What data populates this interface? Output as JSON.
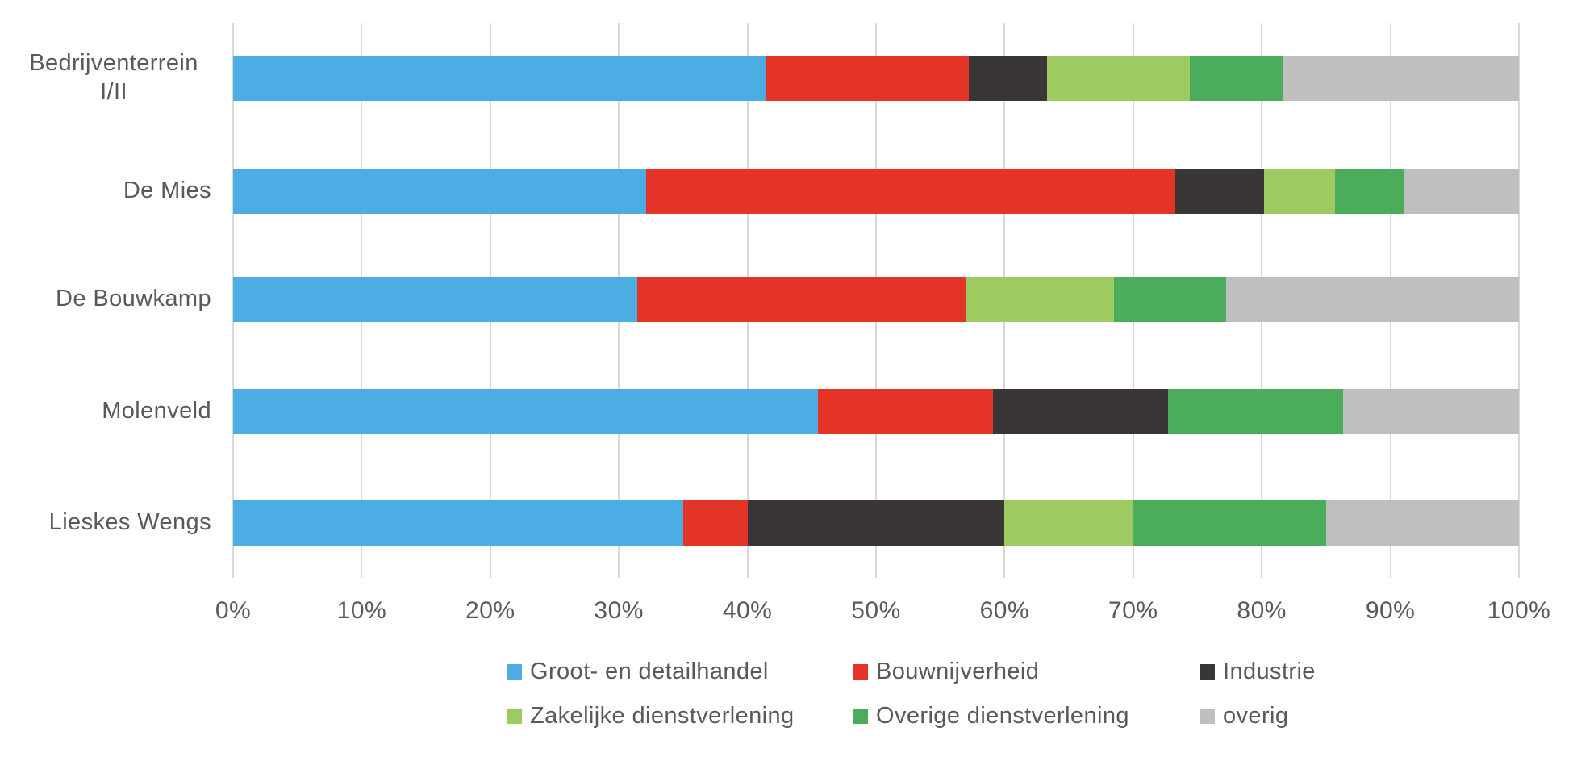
{
  "chart_data": {
    "type": "bar",
    "orientation": "horizontal",
    "stacked": true,
    "title": "",
    "xlabel": "",
    "ylabel": "",
    "unit": "%",
    "xlim": [
      0,
      100
    ],
    "grid": true,
    "legend_position": "bottom",
    "categories": [
      "Bedrijventerrein I/II",
      "De Mies",
      "De Bouwkamp",
      "Molenveld",
      "Lieskes Wengs"
    ],
    "x_ticks": [
      "0%",
      "10%",
      "20%",
      "30%",
      "40%",
      "50%",
      "60%",
      "70%",
      "80%",
      "90%",
      "100%"
    ],
    "series": [
      {
        "name": "Groot- en detailhandel",
        "color": "#4CACE4",
        "values": [
          41.4,
          32.1,
          31.4,
          45.5,
          35.0
        ]
      },
      {
        "name": "Bouwnijverheid",
        "color": "#E43428",
        "values": [
          15.8,
          41.2,
          25.6,
          13.6,
          5.0
        ]
      },
      {
        "name": "Industrie",
        "color": "#3A3536",
        "values": [
          6.1,
          6.9,
          0.0,
          13.6,
          20.0
        ]
      },
      {
        "name": "Zakelijke dienstverlening",
        "color": "#9DCB62",
        "values": [
          11.1,
          5.5,
          11.5,
          0.0,
          10.0
        ]
      },
      {
        "name": "Overige dienstverlening",
        "color": "#4BAC5B",
        "values": [
          7.2,
          5.4,
          8.7,
          13.6,
          15.0
        ]
      },
      {
        "name": "overig",
        "color": "#C0BFC0",
        "values": [
          18.4,
          8.9,
          22.8,
          13.7,
          15.0
        ]
      }
    ]
  },
  "styles": {
    "background": "#FFFFFF",
    "grid_color": "#D9D9D9",
    "text_color": "#595959"
  }
}
